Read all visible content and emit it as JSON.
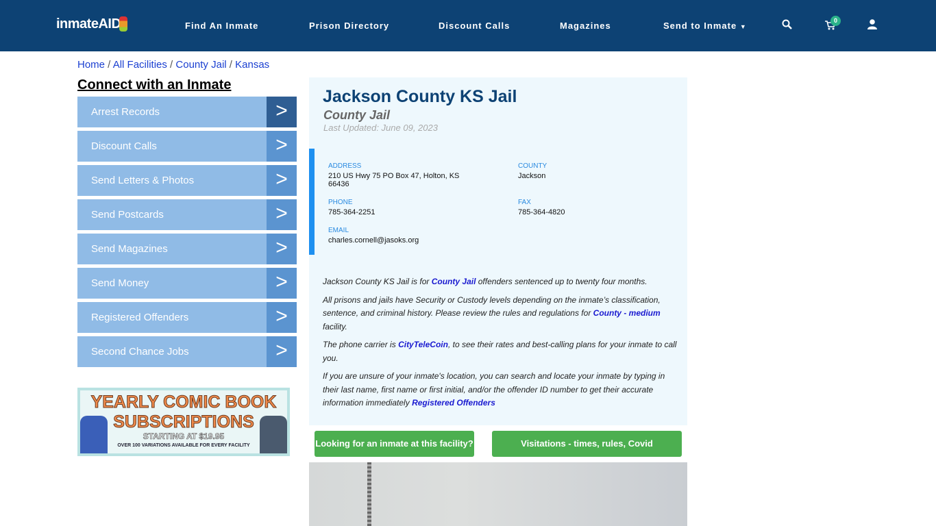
{
  "header": {
    "logo": "inmateAID",
    "nav": [
      "Find An Inmate",
      "Prison Directory",
      "Discount Calls",
      "Magazines",
      "Send to Inmate"
    ],
    "cart_count": "0",
    "icons": [
      "search-icon",
      "cart-icon",
      "user-icon"
    ]
  },
  "breadcrumb": [
    "Home",
    "All Facilities",
    "County Jail",
    "Kansas"
  ],
  "sidebar": {
    "title": "Connect with an Inmate",
    "items": [
      "Arrest Records",
      "Discount Calls",
      "Send Letters & Photos",
      "Send Postcards",
      "Send Magazines",
      "Send Money",
      "Registered Offenders",
      "Second Chance Jobs"
    ]
  },
  "ad": {
    "line1": "YEARLY COMIC BOOK",
    "line2": "SUBSCRIPTIONS",
    "line3": "STARTING AT $19.95",
    "line4": "OVER 100 VARIATIONS AVAILABLE FOR EVERY FACILITY"
  },
  "facility": {
    "name": "Jackson County KS Jail",
    "type": "County Jail",
    "updated": "Last Updated: June 09, 2023",
    "address_label": "ADDRESS",
    "address": "210 US Hwy 75 PO Box 47, Holton, KS 66436",
    "county_label": "COUNTY",
    "county": "Jackson",
    "phone_label": "PHONE",
    "phone": "785-364-2251",
    "fax_label": "FAX",
    "fax": "785-364-4820",
    "email_label": "EMAIL",
    "email": "charles.cornell@jasoks.org"
  },
  "description": {
    "p1": [
      "Jackson County KS Jail is for ",
      "County Jail",
      " offenders sentenced up to twenty four months."
    ],
    "p2": [
      "All prisons and jails have Security or Custody levels depending on the inmate’s classification, sentence, and criminal history. Please review the rules and regulations for ",
      "County - medium",
      " facility."
    ],
    "p3": [
      "The phone carrier is ",
      "CityTeleCoin",
      ", to see their rates and best-calling plans for your inmate to call you."
    ],
    "p4": [
      "If you are unsure of your inmate's location, you can search and locate your inmate by typing in their last name, first name or first initial, and/or the offender ID number to get their accurate information immediately ",
      "Registered Offenders"
    ]
  },
  "buttons": {
    "find": "Looking for an inmate at this facility?",
    "visit": "Visitations - times, rules, Covid cancellations"
  },
  "colors": {
    "header": "#0d4274",
    "sidebar": "#90bbe6",
    "button": "#4caf50",
    "link": "#1a3fd1"
  }
}
